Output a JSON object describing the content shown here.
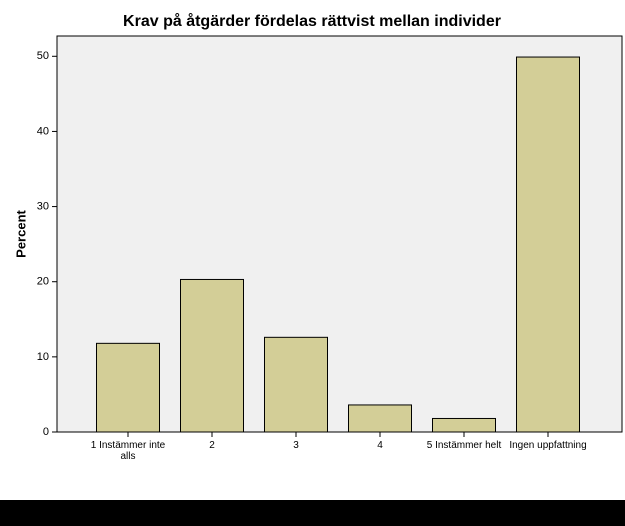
{
  "chart_data": {
    "type": "bar",
    "title": "Krav på åtgärder fördelas rättvist mellan individer",
    "y_label": "Percent",
    "categories": [
      "1 Instämmer inte alls",
      "2",
      "3",
      "4",
      "5 Instämmer helt",
      "Ingen uppfattning"
    ],
    "values": [
      11.8,
      20.3,
      12.6,
      3.6,
      1.8,
      49.9
    ],
    "color": "#d3ce97",
    "ylim": [
      0,
      52.7
    ],
    "yticks": [
      0,
      10,
      20,
      30,
      40,
      50
    ],
    "grid": false
  }
}
